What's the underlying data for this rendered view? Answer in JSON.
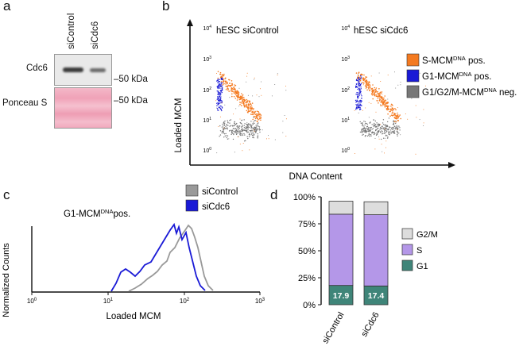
{
  "panels": {
    "a": "a",
    "b": "b",
    "c": "c",
    "d": "d"
  },
  "panel_a": {
    "lanes": [
      "siControl",
      "siCdc6"
    ],
    "rows": [
      {
        "label": "Cdc6",
        "marker": "50 kDa"
      },
      {
        "label": "Ponceau S",
        "marker": "50 kDa"
      }
    ]
  },
  "panel_b": {
    "ylabel": "Loaded MCM",
    "xlabel": "DNA Content",
    "plots": [
      {
        "title": "hESC siControl"
      },
      {
        "title": "hESC siCdc6"
      }
    ],
    "y_ticks": [
      "10",
      "10",
      "10",
      "10",
      "10"
    ],
    "y_exp": [
      "0",
      "1",
      "2",
      "3",
      "4"
    ],
    "legend": [
      {
        "pre": "S-MCM",
        "sup": "DNA",
        "post": " pos.",
        "color": "#f47a20"
      },
      {
        "pre": "G1-MCM",
        "sup": "DNA",
        "post": " pos.",
        "color": "#1a1ad6"
      },
      {
        "pre": "G1/G2/M-MCM",
        "sup": "DNA",
        "post": " neg.",
        "color": "#777777"
      }
    ]
  },
  "panel_c": {
    "subtitle_pre": "G1-MCM",
    "subtitle_sup": "DNA",
    "subtitle_post": "pos.",
    "ylabel": "Normalized Counts",
    "xlabel": "Loaded MCM",
    "x_exp": [
      "0",
      "1",
      "2",
      "3"
    ],
    "legend": [
      {
        "name": "siControl",
        "color": "#999999"
      },
      {
        "name": "siCdc6",
        "color": "#1a1ad6"
      }
    ]
  },
  "chart_data": {
    "type": "bar",
    "categories": [
      "siControl",
      "siCdc6"
    ],
    "series": [
      {
        "name": "G1",
        "values": [
          17.9,
          17.4
        ],
        "color": "#3f8579"
      },
      {
        "name": "S",
        "values": [
          66,
          66
        ],
        "color": "#b497e8"
      },
      {
        "name": "G2/M",
        "values": [
          12,
          12
        ],
        "color": "#dddddd"
      }
    ],
    "data_labels": [
      "17.9",
      "17.4"
    ],
    "y_ticks": [
      "0%",
      "25%",
      "50%",
      "75%",
      "100%"
    ],
    "ylim": [
      0,
      100
    ],
    "legend_order": [
      "G2/M",
      "S",
      "G1"
    ]
  }
}
